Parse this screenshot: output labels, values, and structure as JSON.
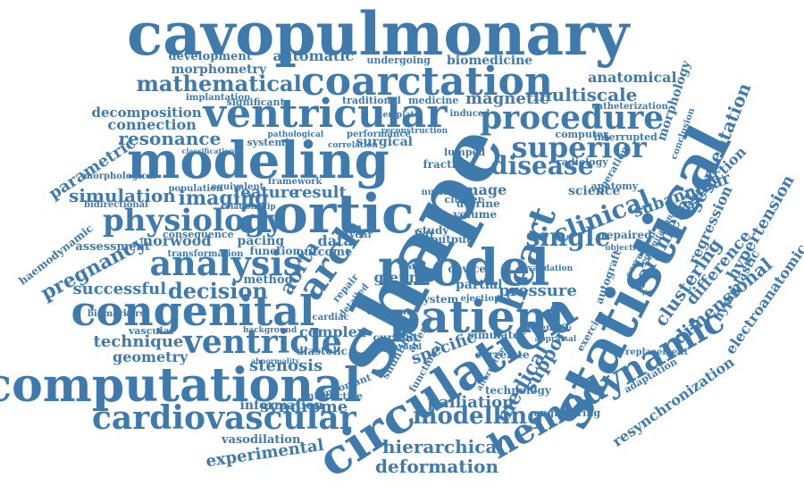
{
  "colors": {
    "word": "#3f7aad",
    "background": "#ffffff"
  },
  "words": [
    "cavopulmonary",
    "coarctation",
    "ventricular",
    "modeling",
    "procedure",
    "mathematical",
    "aortic",
    "physiology",
    "model",
    "shape",
    "statistical",
    "patient",
    "congenital",
    "analysis",
    "circulation",
    "computational",
    "cardiovascular",
    "ventricle",
    "hemodynamic",
    "heart",
    "superior",
    "disease",
    "clinical",
    "single",
    "arch",
    "parameter",
    "imaging",
    "decision",
    "pregnancy",
    "resonance",
    "magnetic",
    "multiscale",
    "anatomical",
    "automatic",
    "biomedicine",
    "development",
    "morphometry",
    "undergoing",
    "significant",
    "implantation",
    "decomposition",
    "connection",
    "simulation",
    "feature",
    "result",
    "surgical",
    "systemic",
    "norwood",
    "pacing",
    "successful",
    "method",
    "data",
    "glenn",
    "technique",
    "geometry",
    "stenosis",
    "vascular",
    "complex",
    "diastolic",
    "information",
    "syndrome",
    "vasodilation",
    "experimental",
    "hierarchical",
    "deformation",
    "modelling",
    "palliation",
    "medical",
    "support",
    "specific",
    "aorta",
    "segmentation",
    "morphology",
    "obstruction",
    "subannular",
    "hypertension",
    "regression",
    "clustering",
    "difference",
    "dimensional",
    "hypoplastic",
    "electroanatomic",
    "resynchronization",
    "parametric",
    "haemodynamic",
    "assessment",
    "bidirectional",
    "morphological",
    "biomarkers",
    "image",
    "science",
    "anatomy",
    "fraction",
    "lumped",
    "radiology",
    "computer",
    "interrupted",
    "catheterization",
    "conclusion",
    "pressure",
    "system",
    "ejection",
    "medicine",
    "traditional",
    "induced",
    "reconstruction",
    "performance",
    "correlation",
    "population",
    "equivalent",
    "pathological",
    "framework",
    "uterine",
    "nuclear",
    "cluster",
    "volume",
    "repaired",
    "objective",
    "autograft",
    "correlated",
    "regurgitation",
    "adaptation",
    "replacement",
    "exercise",
    "potential",
    "appraisal",
    "validation",
    "device",
    "output",
    "partial",
    "study",
    "tract",
    "transformation",
    "consequence",
    "function",
    "outcome",
    "detailed",
    "repair",
    "current",
    "shunting",
    "functional",
    "important",
    "interactive",
    "simulator",
    "correlate",
    "technology",
    "engineering",
    "alternative",
    "abnormality",
    "background",
    "cardiac",
    "different",
    "hybrid",
    "left",
    "year",
    "template",
    "operation",
    "classification",
    "relationship",
    "arterial"
  ]
}
